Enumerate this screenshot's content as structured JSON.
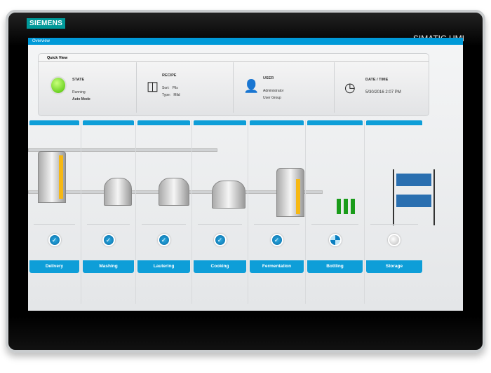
{
  "device": {
    "logo": "SIEMENS",
    "brand": "SIMATIC HMI"
  },
  "header": {
    "title": "Overview"
  },
  "quick_view": {
    "title": "Quick View",
    "state": {
      "label": "STATE",
      "status": "Running",
      "mode": "Auto Mode",
      "indicator_color": "#5cd000"
    },
    "recipe": {
      "label": "RECIPE",
      "sort_label": "Sort:",
      "sort_value": "Pils",
      "type_label": "Type:",
      "type_value": "Mild"
    },
    "user": {
      "label": "USER",
      "name": "Administrator",
      "group": "User Group"
    },
    "datetime": {
      "label": "DATE / TIME",
      "value": "5/30/2016 2:07 PM"
    }
  },
  "stages": [
    {
      "label": "Delivery",
      "status": "done"
    },
    {
      "label": "Mashing",
      "status": "done"
    },
    {
      "label": "Lautering",
      "status": "done"
    },
    {
      "label": "Cooking",
      "status": "done"
    },
    {
      "label": "Fermentation",
      "status": "done"
    },
    {
      "label": "Bottling",
      "status": "in-progress"
    },
    {
      "label": "Storage",
      "status": "idle"
    }
  ],
  "colors": {
    "accent": "#0e9ed8",
    "bezel": "#000000"
  }
}
